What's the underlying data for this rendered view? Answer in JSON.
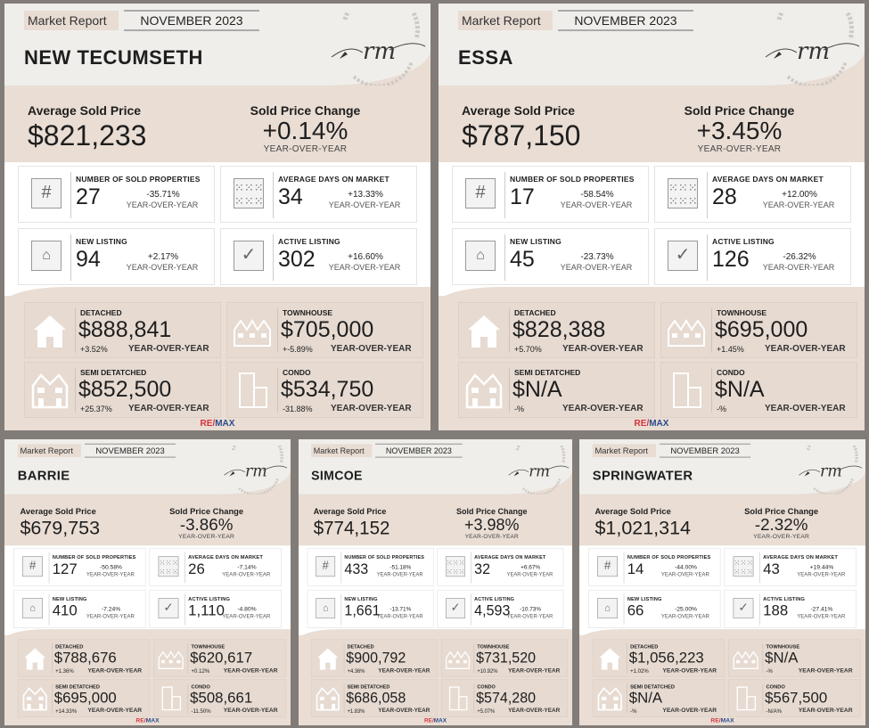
{
  "common": {
    "market_report": "Market Report",
    "month": "NOVEMBER 2023",
    "avg_label": "Average Sold Price",
    "chg_label": "Sold Price Change",
    "yoy": "YEAR-OVER-YEAR",
    "sold_label": "NUMBER OF SOLD PROPERTIES",
    "days_label": "AVERAGE DAYS ON MARKET",
    "new_label": "NEW LISTING",
    "active_label": "ACTIVE LISTING",
    "detached_label": "DETACHED",
    "town_label": "TOWNHOUSE",
    "semi_label": "SEMI DETATCHED",
    "condo_label": "CONDO",
    "remax_a": "RE/",
    "remax_b": "MAX",
    "logo_text": "RALUCA MACKENZIE rm REAL ESTATE"
  },
  "cards": [
    {
      "title": "NEW TECUMSETH",
      "avg": "$821,233",
      "chg": "+0.14%",
      "sold": "27",
      "sold_p": "-35.71%",
      "days": "34",
      "days_p": "+13.33%",
      "new": "94",
      "new_p": "+2.17%",
      "active": "302",
      "active_p": "+16.60%",
      "det": "$888,841",
      "det_p": "+3.52%",
      "town": "$705,000",
      "town_p": "+-5.89%",
      "semi": "$852,500",
      "semi_p": "+25.37%",
      "condo": "$534,750",
      "condo_p": "-31.88%"
    },
    {
      "title": "ESSA",
      "avg": "$787,150",
      "chg": "+3.45%",
      "sold": "17",
      "sold_p": "-58.54%",
      "days": "28",
      "days_p": "+12.00%",
      "new": "45",
      "new_p": "-23.73%",
      "active": "126",
      "active_p": "-26.32%",
      "det": "$828,388",
      "det_p": "+5.70%",
      "town": "$695,000",
      "town_p": "+1.45%",
      "semi": "$N/A",
      "semi_p": "-%",
      "condo": "$N/A",
      "condo_p": "-%"
    },
    {
      "title": "BARRIE",
      "avg": "$679,753",
      "chg": "-3.86%",
      "sold": "127",
      "sold_p": "-50.58%",
      "days": "26",
      "days_p": "-7.14%",
      "new": "410",
      "new_p": "-7.24%",
      "active": "1,110",
      "active_p": "-4.80%",
      "det": "$788,676",
      "det_p": "+1.36%",
      "town": "$620,617",
      "town_p": "+0.12%",
      "semi": "$695,000",
      "semi_p": "+14.33%",
      "condo": "$508,661",
      "condo_p": "-11.50%"
    },
    {
      "title": "SIMCOE",
      "avg": "$774,152",
      "chg": "+3.98%",
      "sold": "433",
      "sold_p": "-51.18%",
      "days": "32",
      "days_p": "+6.67%",
      "new": "1,661",
      "new_p": "-13.71%",
      "active": "4,593",
      "active_p": "-10.73%",
      "det": "$900,792",
      "det_p": "+4.36%",
      "town": "$731,520",
      "town_p": "+10.92%",
      "semi": "$686,058",
      "semi_p": "+1.83%",
      "condo": "$574,280",
      "condo_p": "+5.07%"
    },
    {
      "title": "SPRINGWATER",
      "avg": "$1,021,314",
      "chg": "-2.32%",
      "sold": "14",
      "sold_p": "-44.00%",
      "days": "43",
      "days_p": "+19.44%",
      "new": "66",
      "new_p": "-25.00%",
      "active": "188",
      "active_p": "-27.41%",
      "det": "$1,056,223",
      "det_p": "+1.02%",
      "town": "$N/A",
      "town_p": "-%",
      "semi": "$N/A",
      "semi_p": "-%",
      "condo": "$567,500",
      "condo_p": "-N/A%"
    }
  ]
}
